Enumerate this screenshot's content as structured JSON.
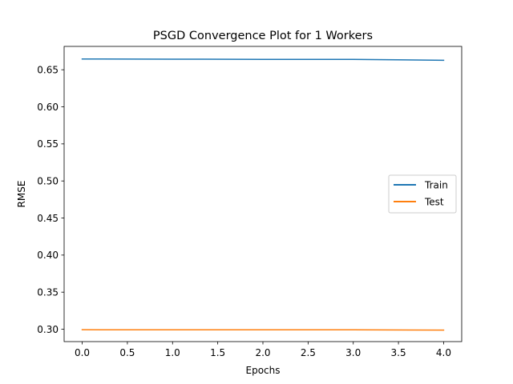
{
  "chart_data": {
    "type": "line",
    "title": "PSGD Convergence Plot for 1 Workers",
    "xlabel": "Epochs",
    "ylabel": "RMSE",
    "x": [
      0,
      1,
      2,
      3,
      4
    ],
    "xlim": [
      -0.2,
      4.2
    ],
    "ylim": [
      0.2833,
      0.6815
    ],
    "xticks": [
      "0.0",
      "0.5",
      "1.0",
      "1.5",
      "2.0",
      "2.5",
      "3.0",
      "3.5",
      "4.0"
    ],
    "xtick_values": [
      0,
      0.5,
      1,
      1.5,
      2,
      2.5,
      3,
      3.5,
      4
    ],
    "yticks": [
      "0.30",
      "0.35",
      "0.40",
      "0.45",
      "0.50",
      "0.55",
      "0.60",
      "0.65"
    ],
    "ytick_values": [
      0.3,
      0.35,
      0.4,
      0.45,
      0.5,
      0.55,
      0.6,
      0.65
    ],
    "grid": false,
    "legend_position": "center-right",
    "series": [
      {
        "name": "Train",
        "color": "#1f77b4",
        "values": [
          0.6645,
          0.6643,
          0.664,
          0.664,
          0.6628
        ]
      },
      {
        "name": "Test",
        "color": "#ff7f0e",
        "values": [
          0.2993,
          0.2992,
          0.2992,
          0.2992,
          0.2988
        ]
      }
    ]
  }
}
